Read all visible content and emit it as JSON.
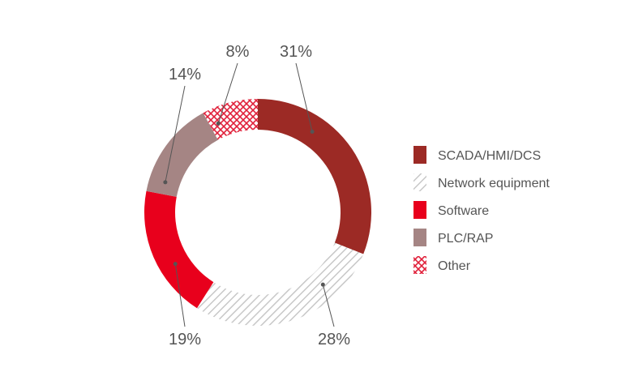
{
  "chart_data": {
    "type": "pie",
    "style": "donut",
    "categories": [
      "SCADA/HMI/DCS",
      "Network equipment",
      "Software",
      "PLC/RAP",
      "Other"
    ],
    "values": [
      31,
      28,
      19,
      14,
      8
    ],
    "value_labels": [
      "31%",
      "28%",
      "19%",
      "14%",
      "8%"
    ],
    "colors": [
      "#9c2a25",
      "#c8c8c8",
      "#e8001c",
      "#a58584",
      "#e0203a"
    ],
    "fills": [
      "solid",
      "diagonal-hatch",
      "solid",
      "solid",
      "cross-hatch"
    ],
    "legend_position": "right",
    "start_angle_deg": 0,
    "direction": "clockwise"
  }
}
